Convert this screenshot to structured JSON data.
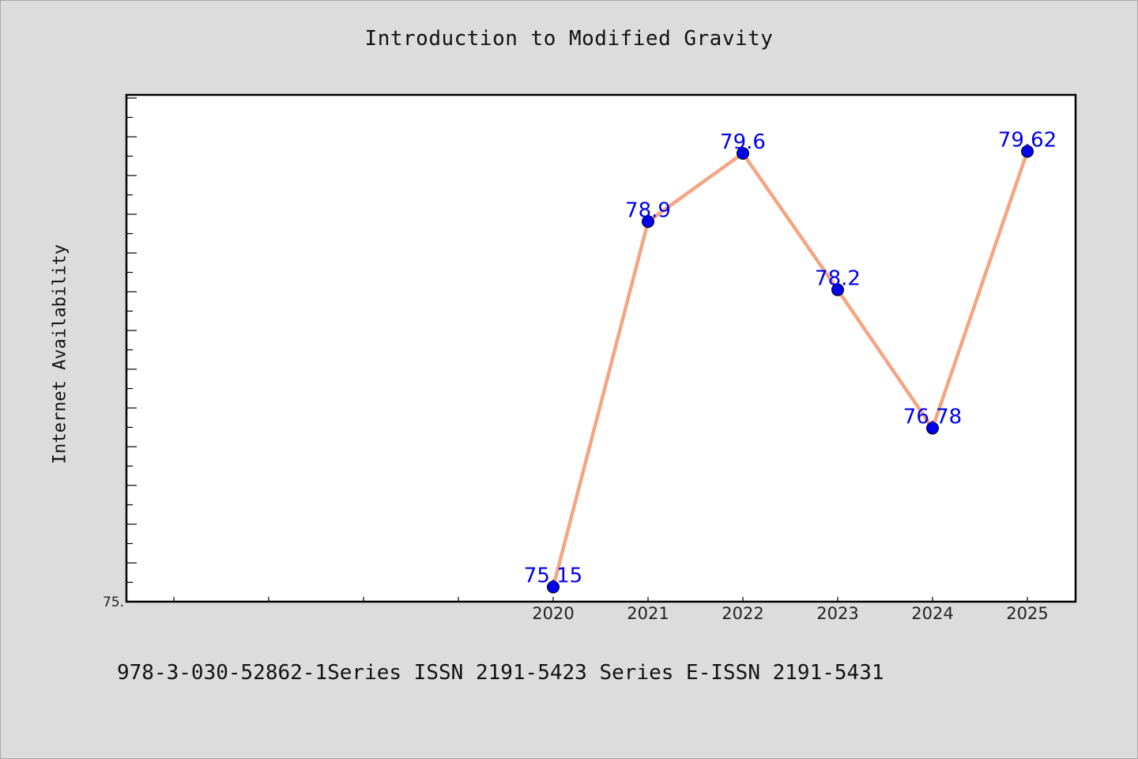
{
  "page": {
    "title": "Introduction to Modified Gravity",
    "footer": "978-3-030-52862-1Series ISSN 2191-5423 Series E-ISSN 2191-5431"
  },
  "colors": {
    "background": "#dcdcdc",
    "plot_background": "#ffffff",
    "line": "#f4a582",
    "marker": "#0000ee",
    "label": "#0000ee"
  },
  "chart_data": {
    "type": "line",
    "title": "Introduction to Modified Gravity",
    "xlabel": "",
    "ylabel": "Internet Availability",
    "categories": [
      "2020",
      "2021",
      "2022",
      "2023",
      "2024",
      "2025"
    ],
    "x_slots_before_data": 4,
    "series": [
      {
        "values": [
          75.15,
          78.9,
          79.6,
          78.2,
          76.78,
          79.62
        ],
        "labels": [
          "75.15",
          "78.9",
          "79.6",
          "78.2",
          "76.78",
          "79.62"
        ]
      }
    ],
    "ylim": [
      75,
      80.2
    ],
    "ytick_labels": [
      "75."
    ],
    "ytick_values": [
      75
    ],
    "grid": false,
    "legend": "none"
  }
}
